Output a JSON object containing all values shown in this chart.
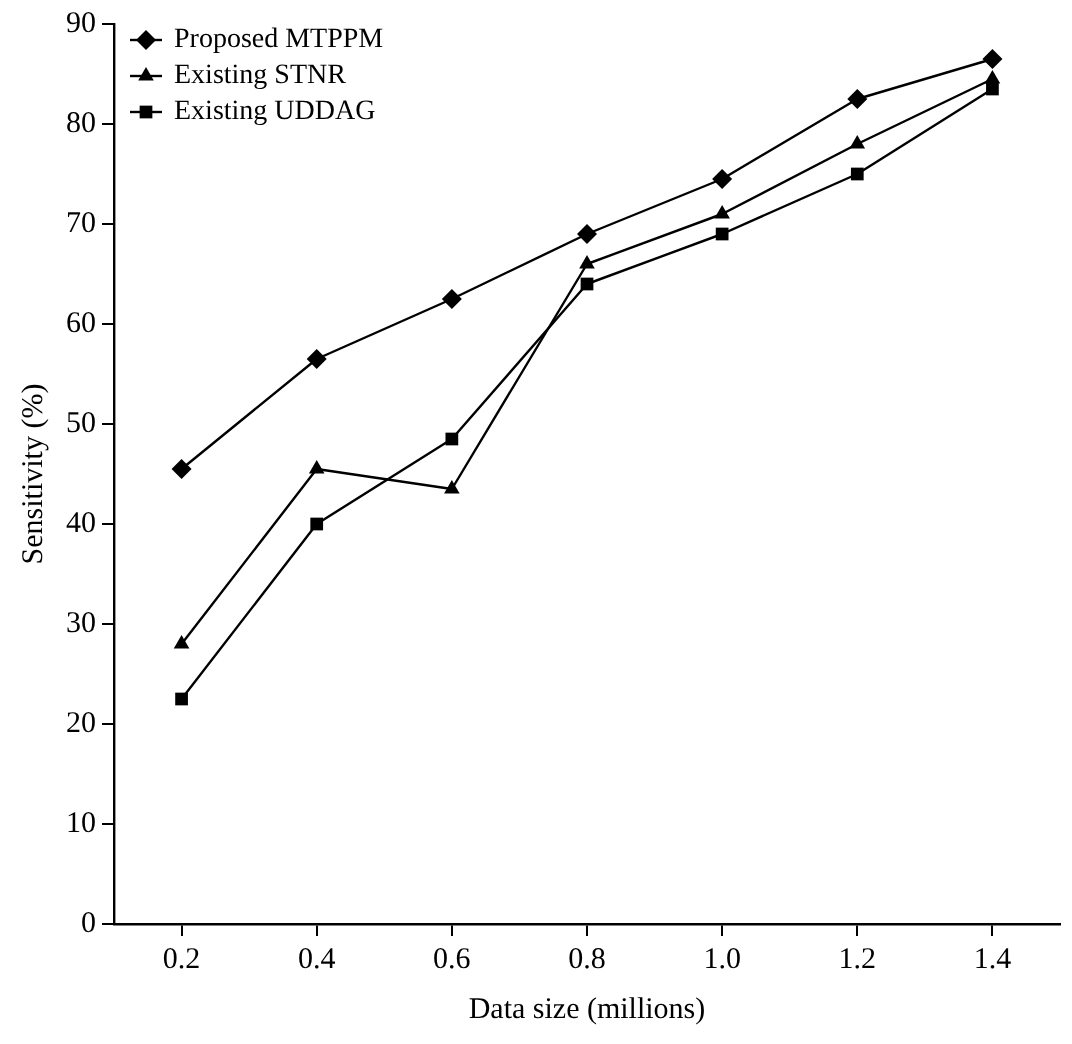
{
  "chart_data": {
    "type": "line",
    "xlabel": "Data size (millions)",
    "ylabel": "Sensitivity (%)",
    "categories": [
      "0.2",
      "0.4",
      "0.6",
      "0.8",
      "1.0",
      "1.2",
      "1.4"
    ],
    "series": [
      {
        "name": "Proposed MTPPM",
        "color": "#000000",
        "marker": "diamond",
        "values": [
          45.5,
          56.5,
          62.5,
          69,
          74.5,
          82.5,
          86.5
        ]
      },
      {
        "name": "Existing STNR",
        "color": "#000000",
        "marker": "triangle",
        "values": [
          28,
          45.5,
          43.5,
          66,
          71,
          78,
          84.5
        ]
      },
      {
        "name": "Existing UDDAG",
        "color": "#000000",
        "marker": "square",
        "values": [
          22.5,
          40,
          48.5,
          64,
          69,
          75,
          83.5
        ]
      }
    ],
    "ylim": [
      0,
      90
    ],
    "yticks": [
      0,
      10,
      20,
      30,
      40,
      50,
      60,
      70,
      80,
      90
    ],
    "grid": false,
    "legend": "top left",
    "line_style": "solid"
  }
}
